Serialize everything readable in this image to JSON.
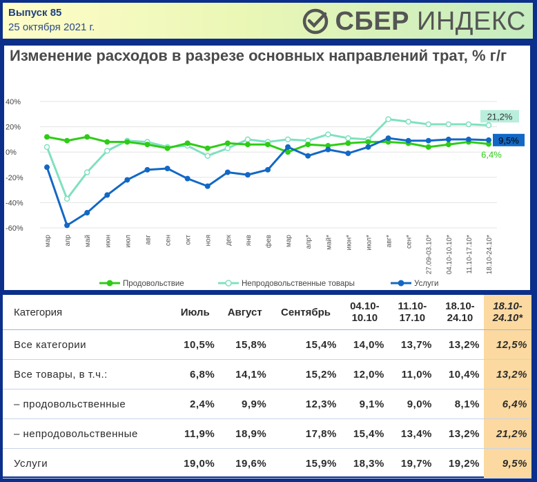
{
  "header": {
    "issue": "Выпуск 85",
    "date": "25 октября 2021 г.",
    "logo_bold": "СБЕР",
    "logo_light": "ИНДЕКС"
  },
  "colors": {
    "food": "#2ecc16",
    "nonfood": "#7fe0c0",
    "services": "#1268c4",
    "highlight": "#fbd9a0"
  },
  "chart_data": {
    "type": "line",
    "title": "Изменение расходов в разрезе основных направлений трат, % г/г",
    "ylim": [
      -60,
      40
    ],
    "yticks": [
      "40%",
      "20%",
      "0%",
      "-20%",
      "-40%",
      "-60%"
    ],
    "grid": true,
    "legend_position": "bottom",
    "categories": [
      "мар",
      "апр",
      "май",
      "июн",
      "июл",
      "авг",
      "сен",
      "окт",
      "ноя",
      "дек",
      "янв",
      "фев",
      "мар",
      "апр*",
      "май*",
      "июн*",
      "июл*",
      "авг*",
      "сен*",
      "27.09-03.10*",
      "04.10-10.10*",
      "11.10-17.10*",
      "18.10-24.10*"
    ],
    "series": [
      {
        "name": "Продовольствие",
        "values": [
          12,
          9,
          12,
          8,
          8,
          6,
          3,
          7,
          3,
          7,
          6,
          6,
          0,
          6,
          5,
          7,
          8,
          8,
          7,
          4,
          6,
          8,
          6.4
        ],
        "end_label": "6,4%"
      },
      {
        "name": "Непродовольственные товары",
        "values": [
          4,
          -37,
          -16,
          1,
          9,
          8,
          4,
          5,
          -3,
          3,
          10,
          8,
          10,
          9,
          14,
          11,
          10,
          26,
          24,
          22,
          22,
          22,
          21.2
        ],
        "end_label": "21,2%"
      },
      {
        "name": "Услуги",
        "values": [
          -12,
          -58,
          -48,
          -34,
          -22,
          -14,
          -13,
          -21,
          -27,
          -16,
          -18,
          -14,
          4,
          -3,
          2,
          -1,
          4,
          11,
          9,
          9,
          10,
          10,
          9.5
        ],
        "end_label": "9,5%"
      }
    ]
  },
  "table": {
    "headers": [
      "Категория",
      "Июль",
      "Август",
      "Сентябрь",
      "04.10-\n10.10",
      "11.10-\n17.10",
      "18.10-\n24.10",
      "18.10-\n24.10*"
    ],
    "rows": [
      [
        "Все категории",
        "10,5%",
        "15,8%",
        "15,4%",
        "14,0%",
        "13,7%",
        "13,2%",
        "12,5%"
      ],
      [
        "Все товары, в т.ч.:",
        "6,8%",
        "14,1%",
        "15,2%",
        "12,0%",
        "11,0%",
        "10,4%",
        "13,2%"
      ],
      [
        "– продовольственные",
        "2,4%",
        "9,9%",
        "12,3%",
        "9,1%",
        "9,0%",
        "8,1%",
        "6,4%"
      ],
      [
        "– непродовольственные",
        "11,9%",
        "18,9%",
        "17,8%",
        "15,4%",
        "13,4%",
        "13,2%",
        "21,2%"
      ],
      [
        "Услуги",
        "19,0%",
        "19,6%",
        "15,9%",
        "18,3%",
        "19,7%",
        "19,2%",
        "9,5%"
      ]
    ]
  }
}
